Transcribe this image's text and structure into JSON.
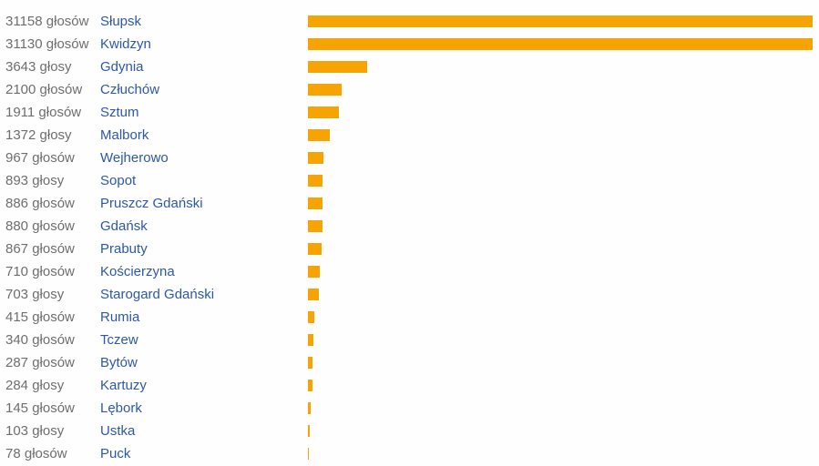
{
  "colors": {
    "bar": "#f6a304",
    "city_link": "#2d58a8",
    "vote_text": "#6e6e6e",
    "background": "#fefefe"
  },
  "chart_data": {
    "type": "bar",
    "orientation": "horizontal",
    "title": "",
    "xlabel": "",
    "ylabel": "",
    "grid": false,
    "legend": false,
    "xlim": [
      0,
      31158
    ],
    "bar_color": "#f6a304",
    "categories": [
      "Słupsk",
      "Kwidzyn",
      "Gdynia",
      "Człuchów",
      "Sztum",
      "Malbork",
      "Wejherowo",
      "Sopot",
      "Pruszcz Gdański",
      "Gdańsk",
      "Prabuty",
      "Kościerzyna",
      "Starogard Gdański",
      "Rumia",
      "Tczew",
      "Bytów",
      "Kartuzy",
      "Lębork",
      "Ustka",
      "Puck"
    ],
    "values": [
      31158,
      31130,
      3643,
      2100,
      1911,
      1372,
      967,
      893,
      886,
      880,
      867,
      710,
      703,
      415,
      340,
      287,
      284,
      145,
      103,
      78
    ],
    "value_labels": [
      "31158 głosów",
      "31130 głosów",
      "3643 głosy",
      "2100 głosów",
      "1911 głosów",
      "1372 głosy",
      "967 głosów",
      "893 głosy",
      "886 głosów",
      "880 głosów",
      "867 głosów",
      "710 głosów",
      "703 głosy",
      "415 głosów",
      "340 głosów",
      "287 głosów",
      "284 głosy",
      "145 głosów",
      "103 głosy",
      "78 głosów"
    ]
  }
}
